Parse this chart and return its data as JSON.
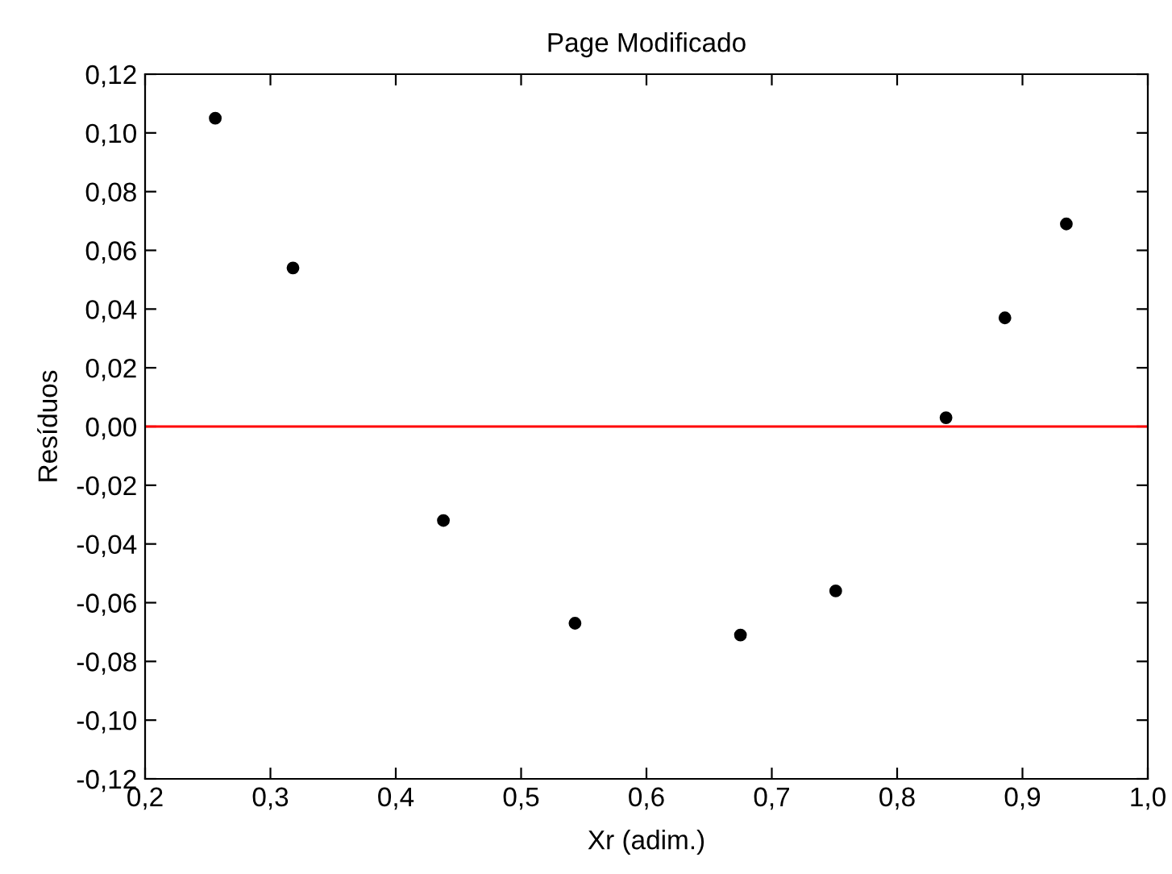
{
  "chart_data": {
    "type": "scatter",
    "title": "Page Modificado",
    "xlabel": "Xr (adim.)",
    "ylabel": "Resíduos",
    "x": [
      0.256,
      0.318,
      0.438,
      0.543,
      0.675,
      0.751,
      0.839,
      0.886,
      0.935
    ],
    "series": [
      {
        "color": "#000000",
        "values": [
          0.105,
          0.054,
          -0.032,
          -0.067,
          -0.071,
          -0.056,
          0.003,
          0.037,
          0.069
        ]
      }
    ],
    "marker": "circle",
    "xlim": [
      0.2,
      1.0
    ],
    "xticks": [
      {
        "value": 0.2,
        "label": "0,2"
      },
      {
        "value": 0.3,
        "label": "0,3"
      },
      {
        "value": 0.4,
        "label": "0,4"
      },
      {
        "value": 0.5,
        "label": "0,5"
      },
      {
        "value": 0.6,
        "label": "0,6"
      },
      {
        "value": 0.7,
        "label": "0,7"
      },
      {
        "value": 0.8,
        "label": "0,8"
      },
      {
        "value": 0.9,
        "label": "0,9"
      },
      {
        "value": 1.0,
        "label": "1,0"
      }
    ],
    "ylim": [
      -0.12,
      0.12
    ],
    "yticks": [
      {
        "value": -0.12,
        "label": "-0,12"
      },
      {
        "value": -0.1,
        "label": "-0,10"
      },
      {
        "value": -0.08,
        "label": "-0,08"
      },
      {
        "value": -0.06,
        "label": "-0,06"
      },
      {
        "value": -0.04,
        "label": "-0,04"
      },
      {
        "value": -0.02,
        "label": "-0,02"
      },
      {
        "value": 0.0,
        "label": "0,00"
      },
      {
        "value": 0.02,
        "label": "0,02"
      },
      {
        "value": 0.04,
        "label": "0,04"
      },
      {
        "value": 0.06,
        "label": "0,06"
      },
      {
        "value": 0.08,
        "label": "0,08"
      },
      {
        "value": 0.1,
        "label": "0,10"
      },
      {
        "value": 0.12,
        "label": "0,12"
      }
    ],
    "ref_lines": [
      {
        "axis": "y",
        "value": 0,
        "color": "#ff0000"
      }
    ],
    "grid": false,
    "legend": false
  }
}
